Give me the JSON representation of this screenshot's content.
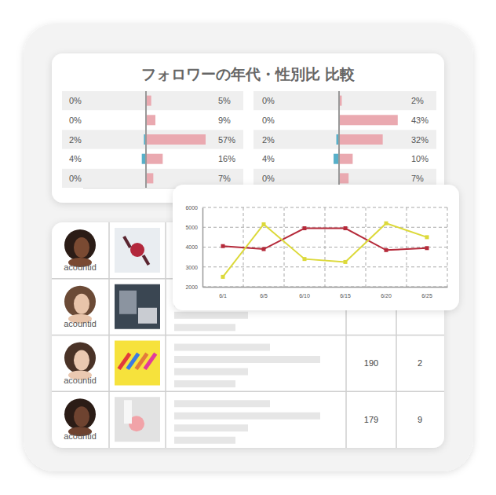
{
  "panel": {
    "title": "フォロワーの年代・性別比 比較"
  },
  "chart_data": [
    {
      "type": "bar",
      "orientation": "horizontal",
      "xlim": [
        0,
        60
      ],
      "tick_labels": false,
      "data_labels": true,
      "series": [
        {
          "color": "#58b0c9",
          "values": [
            0,
            0,
            2,
            4,
            0
          ],
          "value_labels": [
            "0%",
            "0%",
            "2%",
            "4%",
            "0%"
          ]
        },
        {
          "color": "#eaa9b0",
          "values": [
            5,
            9,
            57,
            16,
            7
          ],
          "value_labels": [
            "5%",
            "9%",
            "57%",
            "16%",
            "7%"
          ]
        }
      ]
    },
    {
      "type": "bar",
      "orientation": "horizontal",
      "xlim": [
        0,
        46
      ],
      "tick_labels": false,
      "data_labels": true,
      "series": [
        {
          "color": "#58b0c9",
          "values": [
            0,
            0,
            2,
            4,
            0
          ],
          "value_labels": [
            "0%",
            "0%",
            "2%",
            "4%",
            "0%"
          ]
        },
        {
          "color": "#eaa9b0",
          "values": [
            2,
            43,
            32,
            10,
            7
          ],
          "value_labels": [
            "2%",
            "43%",
            "32%",
            "10%",
            "7%"
          ]
        }
      ]
    },
    {
      "type": "line",
      "categories": [
        "6/1",
        "6/5",
        "6/10",
        "6/15",
        "6/20",
        "6/25"
      ],
      "ylim": [
        2000,
        6000
      ],
      "yticks": [
        2000,
        3000,
        4000,
        5000,
        6000
      ],
      "grid": true,
      "marker": "square",
      "series": [
        {
          "color": "#b52a3a",
          "values": [
            4050,
            3900,
            4950,
            4950,
            3850,
            3950
          ]
        },
        {
          "color": "#dcd93a",
          "values": [
            2500,
            5150,
            3400,
            3250,
            5200,
            4500
          ]
        }
      ]
    }
  ],
  "table": {
    "rows": [
      {
        "account": "acountid"
      },
      {
        "account": "acountid"
      },
      {
        "account": "acountid",
        "stats": [
          190,
          2
        ]
      },
      {
        "account": "acountid",
        "stats": [
          179,
          9
        ]
      }
    ]
  }
}
